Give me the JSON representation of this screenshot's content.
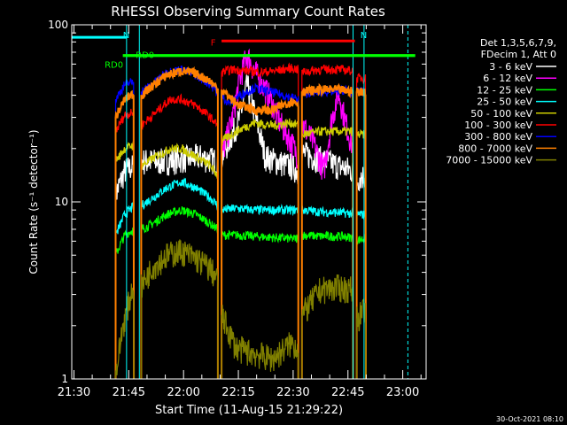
{
  "chart_data": {
    "type": "line",
    "title": "RHESSI Observing Summary Count Rates",
    "xlabel": "Start Time (11-Aug-15 21:29:22)",
    "ylabel": "Count Rate (s⁻¹ detector⁻¹)",
    "yscale": "log",
    "ylim": [
      1,
      100
    ],
    "xlim_minutes": [
      0,
      97
    ],
    "x_ticks": [
      {
        "label": "21:30",
        "min": 0.6
      },
      {
        "label": "21:45",
        "min": 15.6
      },
      {
        "label": "22:00",
        "min": 30.6
      },
      {
        "label": "22:15",
        "min": 45.6
      },
      {
        "label": "22:30",
        "min": 60.6
      },
      {
        "label": "22:45",
        "min": 75.6
      },
      {
        "label": "23:00",
        "min": 90.6
      }
    ],
    "y_ticks": [
      {
        "label": "1",
        "value": 1
      },
      {
        "label": "10",
        "value": 10
      },
      {
        "label": "100",
        "value": 100
      }
    ],
    "legend": {
      "placement": "right",
      "header": [
        "Det 1,3,5,6,7,9,",
        "FDecim 1, Att 0"
      ],
      "entries": [
        {
          "name": "3 - 6 keV",
          "color": "#ffffff"
        },
        {
          "name": "6 - 12 keV",
          "color": "#ff00ff"
        },
        {
          "name": "12 - 25 keV",
          "color": "#00ff00"
        },
        {
          "name": "25 - 50 keV",
          "color": "#00ffff"
        },
        {
          "name": "50 - 100 keV",
          "color": "#cccc00"
        },
        {
          "name": "100 - 300 keV",
          "color": "#ff0000"
        },
        {
          "name": "300 - 800 keV",
          "color": "#0000ff"
        },
        {
          "name": "800 - 7000 keV",
          "color": "#ff8000"
        },
        {
          "name": "7000 - 15000 keV",
          "color": "#808000"
        }
      ]
    },
    "annotations": [
      {
        "label": "N",
        "color": "#00ffff",
        "x": [
          0,
          15
        ],
        "y": 85
      },
      {
        "label": "N",
        "color": "#00ffff",
        "x": [
          77,
          92
        ],
        "y": 85
      },
      {
        "label": "RD0",
        "color": "#00ff00",
        "x": [
          14,
          94
        ],
        "y": 67
      },
      {
        "label": "RD0",
        "color": "#00ff00",
        "x": [
          14,
          94
        ],
        "y": 67
      },
      {
        "label": "F",
        "color": "#ff0000",
        "x": [
          41,
          77.5
        ],
        "y": 81
      }
    ],
    "vertical_markers": [
      {
        "min": 0,
        "style": "solid"
      },
      {
        "min": 15,
        "style": "solid"
      },
      {
        "min": 18.5,
        "style": "solid"
      },
      {
        "min": 77,
        "style": "solid"
      },
      {
        "min": 80,
        "style": "solid"
      },
      {
        "min": 92,
        "style": "dashed"
      }
    ],
    "segments": [
      [
        12,
        17
      ],
      [
        19,
        40
      ],
      [
        41,
        62
      ],
      [
        63,
        77
      ],
      [
        78,
        80.5
      ]
    ],
    "series": [
      {
        "color": "#ffffff",
        "values": [
          [
            12,
            11
          ],
          [
            14.5,
            15
          ],
          [
            17,
            16
          ],
          [
            19,
            17
          ],
          [
            25,
            17
          ],
          [
            30,
            17.5
          ],
          [
            35,
            18
          ],
          [
            40,
            17
          ],
          [
            41,
            18
          ],
          [
            46,
            30
          ],
          [
            48,
            46
          ],
          [
            50,
            32
          ],
          [
            53,
            18
          ],
          [
            56,
            17
          ],
          [
            60,
            16
          ],
          [
            62,
            15
          ],
          [
            63,
            19
          ],
          [
            66,
            18
          ],
          [
            70,
            17
          ],
          [
            73,
            16
          ],
          [
            77,
            15
          ],
          [
            78,
            13
          ],
          [
            79,
            14
          ],
          [
            80.5,
            14
          ]
        ]
      },
      {
        "color": "#ff00ff",
        "values": [
          [
            41,
            18
          ],
          [
            44,
            30
          ],
          [
            46,
            50
          ],
          [
            48,
            68
          ],
          [
            50,
            55
          ],
          [
            54,
            40
          ],
          [
            57,
            28
          ],
          [
            60,
            22
          ],
          [
            62,
            18
          ],
          [
            63,
            28
          ],
          [
            66,
            22
          ],
          [
            69,
            15
          ],
          [
            71,
            28
          ],
          [
            73,
            42
          ],
          [
            75,
            28
          ],
          [
            77,
            20
          ]
        ]
      },
      {
        "color": "#00ff00",
        "values": [
          [
            12,
            5
          ],
          [
            14.5,
            6.5
          ],
          [
            17,
            7
          ],
          [
            19,
            7
          ],
          [
            22,
            7.5
          ],
          [
            26,
            8.5
          ],
          [
            30,
            9
          ],
          [
            34,
            8.5
          ],
          [
            38,
            7.5
          ],
          [
            40,
            7
          ],
          [
            41,
            6.5
          ],
          [
            45,
            6.5
          ],
          [
            50,
            6.4
          ],
          [
            55,
            6.3
          ],
          [
            60,
            6.2
          ],
          [
            62,
            6.2
          ],
          [
            63,
            6.5
          ],
          [
            68,
            6.4
          ],
          [
            73,
            6.4
          ],
          [
            77,
            6.3
          ],
          [
            78,
            6.1
          ],
          [
            80.5,
            6.2
          ]
        ]
      },
      {
        "color": "#00ffff",
        "values": [
          [
            12,
            6.5
          ],
          [
            14.5,
            8.5
          ],
          [
            17,
            9.5
          ],
          [
            19,
            9.5
          ],
          [
            22,
            10.5
          ],
          [
            26,
            12
          ],
          [
            30,
            13
          ],
          [
            34,
            12
          ],
          [
            38,
            10.5
          ],
          [
            40,
            9.5
          ],
          [
            41,
            9
          ],
          [
            45,
            9.2
          ],
          [
            50,
            9
          ],
          [
            55,
            9
          ],
          [
            60,
            9
          ],
          [
            62,
            9
          ],
          [
            63,
            9
          ],
          [
            68,
            8.8
          ],
          [
            73,
            8.7
          ],
          [
            77,
            8.6
          ],
          [
            78,
            8.5
          ],
          [
            80.5,
            8.5
          ]
        ]
      },
      {
        "color": "#cccc00",
        "values": [
          [
            12,
            17
          ],
          [
            14.5,
            20
          ],
          [
            17,
            21
          ],
          [
            19,
            16
          ],
          [
            23,
            18
          ],
          [
            27,
            20
          ],
          [
            30,
            20
          ],
          [
            34,
            18
          ],
          [
            38,
            16
          ],
          [
            40,
            14
          ],
          [
            41,
            22
          ],
          [
            45,
            25
          ],
          [
            50,
            28
          ],
          [
            55,
            27
          ],
          [
            60,
            28
          ],
          [
            62,
            27
          ],
          [
            63,
            24
          ],
          [
            68,
            25
          ],
          [
            73,
            25
          ],
          [
            77,
            25
          ],
          [
            78,
            24
          ],
          [
            80.5,
            24
          ]
        ]
      },
      {
        "color": "#ff0000",
        "values": [
          [
            12,
            25
          ],
          [
            14.5,
            31
          ],
          [
            17,
            32
          ],
          [
            19,
            27
          ],
          [
            23,
            32
          ],
          [
            27,
            38
          ],
          [
            30,
            38
          ],
          [
            34,
            35
          ],
          [
            38,
            30
          ],
          [
            40,
            27
          ],
          [
            41,
            54
          ],
          [
            44,
            56
          ],
          [
            48,
            55
          ],
          [
            52,
            54
          ],
          [
            56,
            55
          ],
          [
            60,
            57
          ],
          [
            62,
            56
          ],
          [
            63,
            54
          ],
          [
            68,
            56
          ],
          [
            73,
            56
          ],
          [
            77,
            55
          ],
          [
            78,
            50
          ],
          [
            80.5,
            50
          ]
        ]
      },
      {
        "color": "#0000ff",
        "values": [
          [
            12,
            38
          ],
          [
            14.5,
            46
          ],
          [
            17,
            48
          ],
          [
            19,
            42
          ],
          [
            22,
            46
          ],
          [
            26,
            54
          ],
          [
            30,
            56
          ],
          [
            34,
            52
          ],
          [
            38,
            46
          ],
          [
            40,
            41
          ],
          [
            41,
            40
          ],
          [
            43,
            36
          ],
          [
            46,
            40
          ],
          [
            50,
            44
          ],
          [
            54,
            42
          ],
          [
            58,
            40
          ],
          [
            62,
            38
          ],
          [
            63,
            41
          ],
          [
            68,
            42
          ],
          [
            72,
            42
          ],
          [
            75,
            43
          ],
          [
            77,
            41
          ],
          [
            78,
            42
          ],
          [
            80.5,
            42
          ]
        ]
      },
      {
        "color": "#ff8000",
        "values": [
          [
            12,
            30
          ],
          [
            14.5,
            38
          ],
          [
            17,
            41
          ],
          [
            19,
            40
          ],
          [
            22,
            45
          ],
          [
            26,
            52
          ],
          [
            30,
            55
          ],
          [
            34,
            53
          ],
          [
            38,
            48
          ],
          [
            40,
            43
          ],
          [
            41,
            43
          ],
          [
            45,
            36
          ],
          [
            50,
            33
          ],
          [
            55,
            33
          ],
          [
            60,
            37
          ],
          [
            62,
            36
          ],
          [
            63,
            42
          ],
          [
            68,
            43
          ],
          [
            73,
            43
          ],
          [
            77,
            42
          ],
          [
            78,
            42
          ],
          [
            80.5,
            42
          ]
        ]
      },
      {
        "color": "#808000",
        "values": [
          [
            12,
            1.05
          ],
          [
            14,
            2.0
          ],
          [
            17,
            3.5
          ],
          [
            19,
            3.3
          ],
          [
            22,
            4.3
          ],
          [
            26,
            5.0
          ],
          [
            30,
            5.3
          ],
          [
            34,
            4.8
          ],
          [
            38,
            4.2
          ],
          [
            40,
            3.6
          ],
          [
            41,
            2.3
          ],
          [
            45,
            1.5
          ],
          [
            50,
            1.4
          ],
          [
            55,
            1.3
          ],
          [
            60,
            1.6
          ],
          [
            62,
            1.5
          ],
          [
            63,
            2.3
          ],
          [
            68,
            3.2
          ],
          [
            73,
            3.3
          ],
          [
            77,
            3.2
          ],
          [
            78,
            2.2
          ],
          [
            80.5,
            2.5
          ]
        ]
      }
    ]
  },
  "footer": {
    "timestamp": "30-Oct-2021 08:10"
  }
}
